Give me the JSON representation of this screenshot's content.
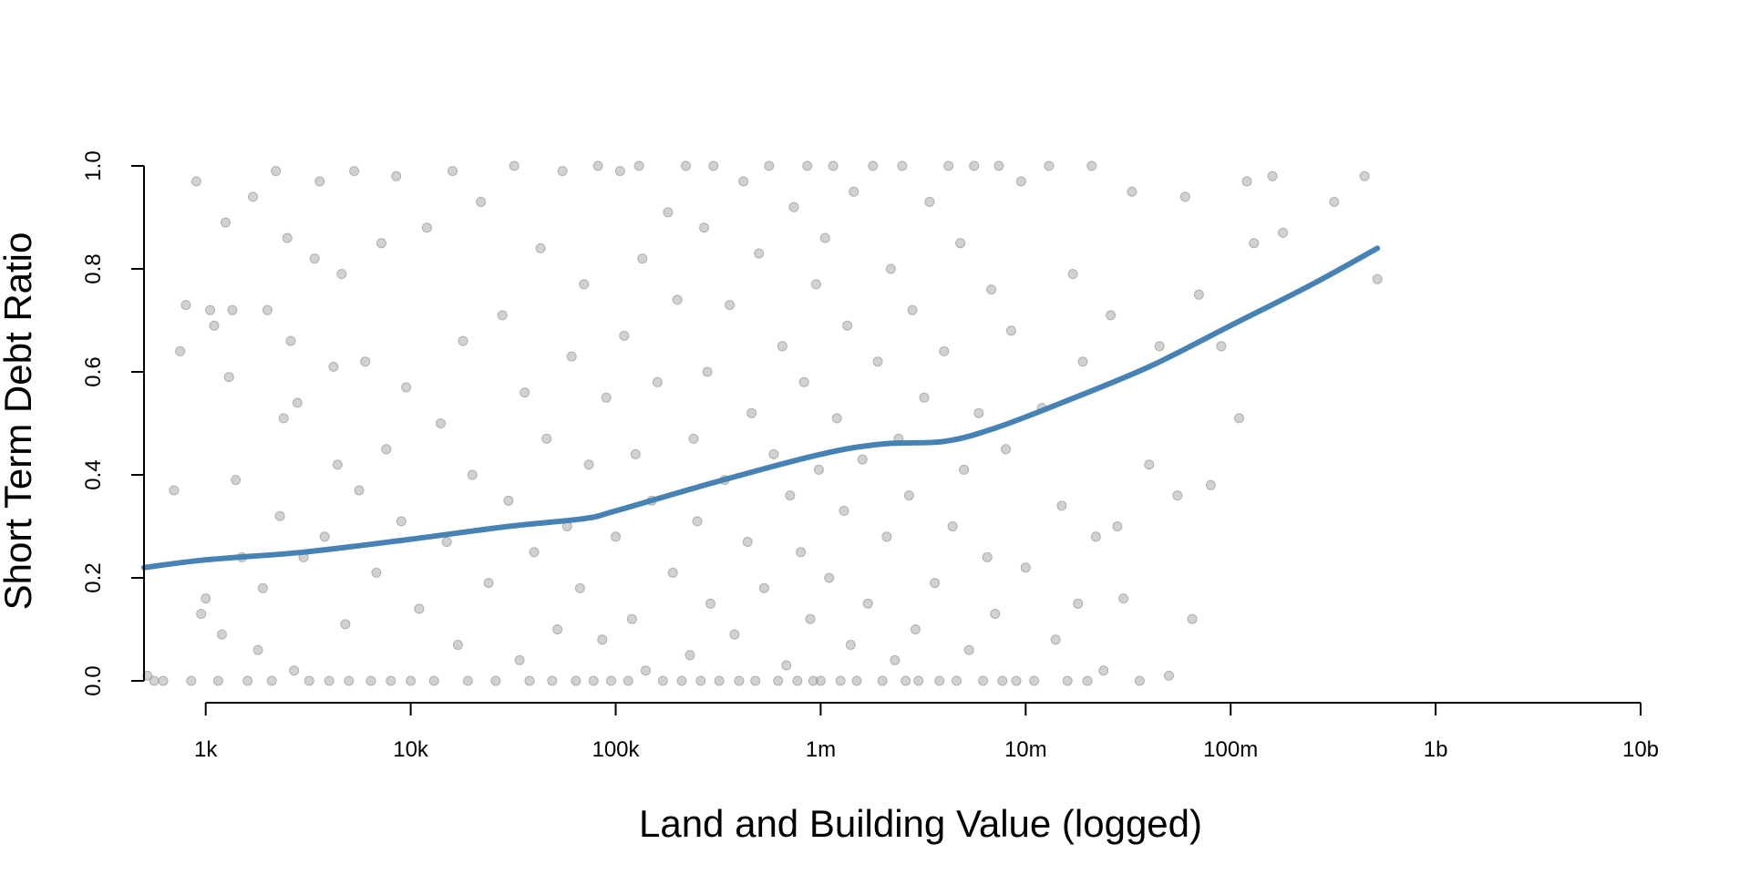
{
  "chart_data": {
    "type": "scatter",
    "title": "",
    "xlabel": "Land and Building Value (logged)",
    "ylabel": "Short Term Debt Ratio",
    "x_scale": "log",
    "xlim": [
      500,
      10000000000
    ],
    "ylim": [
      0,
      1
    ],
    "x_ticks": [
      {
        "value": 1000,
        "label": "1k"
      },
      {
        "value": 10000,
        "label": "10k"
      },
      {
        "value": 100000,
        "label": "100k"
      },
      {
        "value": 1000000,
        "label": "1m"
      },
      {
        "value": 10000000,
        "label": "10m"
      },
      {
        "value": 100000000,
        "label": "100m"
      },
      {
        "value": 1000000000,
        "label": "1b"
      },
      {
        "value": 10000000000,
        "label": "10b"
      }
    ],
    "y_ticks": [
      {
        "value": 0,
        "label": "0.0"
      },
      {
        "value": 0.2,
        "label": "0.2"
      },
      {
        "value": 0.4,
        "label": "0.4"
      },
      {
        "value": 0.6,
        "label": "0.6"
      },
      {
        "value": 0.8,
        "label": "0.8"
      },
      {
        "value": 1,
        "label": "1.0"
      }
    ],
    "grid": false,
    "point_color": "#999999",
    "trend_color": "#4682b4",
    "series": [
      {
        "type": "scatter",
        "points": [
          [
            520,
            0.01
          ],
          [
            560,
            0.0
          ],
          [
            620,
            0.0
          ],
          [
            700,
            0.37
          ],
          [
            750,
            0.64
          ],
          [
            800,
            0.73
          ],
          [
            850,
            0.0
          ],
          [
            900,
            0.97
          ],
          [
            950,
            0.13
          ],
          [
            1000,
            0.16
          ],
          [
            1050,
            0.72
          ],
          [
            1100,
            0.69
          ],
          [
            1150,
            0.0
          ],
          [
            1200,
            0.09
          ],
          [
            1250,
            0.89
          ],
          [
            1300,
            0.59
          ],
          [
            1350,
            0.72
          ],
          [
            1400,
            0.39
          ],
          [
            1500,
            0.24
          ],
          [
            1600,
            0.0
          ],
          [
            1700,
            0.94
          ],
          [
            1800,
            0.06
          ],
          [
            1900,
            0.18
          ],
          [
            2000,
            0.72
          ],
          [
            2100,
            0.0
          ],
          [
            2200,
            0.99
          ],
          [
            2300,
            0.32
          ],
          [
            2400,
            0.51
          ],
          [
            2500,
            0.86
          ],
          [
            2600,
            0.66
          ],
          [
            2700,
            0.02
          ],
          [
            2800,
            0.54
          ],
          [
            3000,
            0.24
          ],
          [
            3200,
            0.0
          ],
          [
            3400,
            0.82
          ],
          [
            3600,
            0.97
          ],
          [
            3800,
            0.28
          ],
          [
            4000,
            0.0
          ],
          [
            4200,
            0.61
          ],
          [
            4400,
            0.42
          ],
          [
            4600,
            0.79
          ],
          [
            4800,
            0.11
          ],
          [
            5000,
            0.0
          ],
          [
            5300,
            0.99
          ],
          [
            5600,
            0.37
          ],
          [
            6000,
            0.62
          ],
          [
            6400,
            0.0
          ],
          [
            6800,
            0.21
          ],
          [
            7200,
            0.85
          ],
          [
            7600,
            0.45
          ],
          [
            8000,
            0.0
          ],
          [
            8500,
            0.98
          ],
          [
            9000,
            0.31
          ],
          [
            9500,
            0.57
          ],
          [
            10000,
            0.0
          ],
          [
            11000,
            0.14
          ],
          [
            12000,
            0.88
          ],
          [
            13000,
            0.0
          ],
          [
            14000,
            0.5
          ],
          [
            15000,
            0.27
          ],
          [
            16000,
            0.99
          ],
          [
            17000,
            0.07
          ],
          [
            18000,
            0.66
          ],
          [
            19000,
            0.0
          ],
          [
            20000,
            0.4
          ],
          [
            22000,
            0.93
          ],
          [
            24000,
            0.19
          ],
          [
            26000,
            0.0
          ],
          [
            28000,
            0.71
          ],
          [
            30000,
            0.35
          ],
          [
            32000,
            1.0
          ],
          [
            34000,
            0.04
          ],
          [
            36000,
            0.56
          ],
          [
            38000,
            0.0
          ],
          [
            40000,
            0.25
          ],
          [
            43000,
            0.84
          ],
          [
            46000,
            0.47
          ],
          [
            49000,
            0.0
          ],
          [
            52000,
            0.1
          ],
          [
            55000,
            0.99
          ],
          [
            58000,
            0.3
          ],
          [
            61000,
            0.63
          ],
          [
            64000,
            0.0
          ],
          [
            67000,
            0.18
          ],
          [
            70000,
            0.77
          ],
          [
            74000,
            0.42
          ],
          [
            78000,
            0.0
          ],
          [
            82000,
            1.0
          ],
          [
            86000,
            0.08
          ],
          [
            90000,
            0.55
          ],
          [
            95000,
            0.0
          ],
          [
            100000,
            0.28
          ],
          [
            105000,
            0.99
          ],
          [
            110000,
            0.67
          ],
          [
            115000,
            0.0
          ],
          [
            120000,
            0.12
          ],
          [
            125000,
            0.44
          ],
          [
            130000,
            1.0
          ],
          [
            135000,
            0.82
          ],
          [
            140000,
            0.02
          ],
          [
            150000,
            0.35
          ],
          [
            160000,
            0.58
          ],
          [
            170000,
            0.0
          ],
          [
            180000,
            0.91
          ],
          [
            190000,
            0.21
          ],
          [
            200000,
            0.74
          ],
          [
            210000,
            0.0
          ],
          [
            220000,
            1.0
          ],
          [
            230000,
            0.05
          ],
          [
            240000,
            0.47
          ],
          [
            250000,
            0.31
          ],
          [
            260000,
            0.0
          ],
          [
            270000,
            0.88
          ],
          [
            280000,
            0.6
          ],
          [
            290000,
            0.15
          ],
          [
            300000,
            1.0
          ],
          [
            320000,
            0.0
          ],
          [
            340000,
            0.39
          ],
          [
            360000,
            0.73
          ],
          [
            380000,
            0.09
          ],
          [
            400000,
            0.0
          ],
          [
            420000,
            0.97
          ],
          [
            440000,
            0.27
          ],
          [
            460000,
            0.52
          ],
          [
            480000,
            0.0
          ],
          [
            500000,
            0.83
          ],
          [
            530000,
            0.18
          ],
          [
            560000,
            1.0
          ],
          [
            590000,
            0.44
          ],
          [
            620000,
            0.0
          ],
          [
            650000,
            0.65
          ],
          [
            680000,
            0.03
          ],
          [
            710000,
            0.36
          ],
          [
            740000,
            0.92
          ],
          [
            770000,
            0.0
          ],
          [
            800000,
            0.25
          ],
          [
            830000,
            0.58
          ],
          [
            860000,
            1.0
          ],
          [
            890000,
            0.12
          ],
          [
            920000,
            0.0
          ],
          [
            950000,
            0.77
          ],
          [
            980000,
            0.41
          ],
          [
            1000000,
            0.0
          ],
          [
            1050000,
            0.86
          ],
          [
            1100000,
            0.2
          ],
          [
            1150000,
            1.0
          ],
          [
            1200000,
            0.51
          ],
          [
            1250000,
            0.0
          ],
          [
            1300000,
            0.33
          ],
          [
            1350000,
            0.69
          ],
          [
            1400000,
            0.07
          ],
          [
            1450000,
            0.95
          ],
          [
            1500000,
            0.0
          ],
          [
            1600000,
            0.43
          ],
          [
            1700000,
            0.15
          ],
          [
            1800000,
            1.0
          ],
          [
            1900000,
            0.62
          ],
          [
            2000000,
            0.0
          ],
          [
            2100000,
            0.28
          ],
          [
            2200000,
            0.8
          ],
          [
            2300000,
            0.04
          ],
          [
            2400000,
            0.47
          ],
          [
            2500000,
            1.0
          ],
          [
            2600000,
            0.0
          ],
          [
            2700000,
            0.36
          ],
          [
            2800000,
            0.72
          ],
          [
            2900000,
            0.1
          ],
          [
            3000000,
            0.0
          ],
          [
            3200000,
            0.55
          ],
          [
            3400000,
            0.93
          ],
          [
            3600000,
            0.19
          ],
          [
            3800000,
            0.0
          ],
          [
            4000000,
            0.64
          ],
          [
            4200000,
            1.0
          ],
          [
            4400000,
            0.3
          ],
          [
            4600000,
            0.0
          ],
          [
            4800000,
            0.85
          ],
          [
            5000000,
            0.41
          ],
          [
            5300000,
            0.06
          ],
          [
            5600000,
            1.0
          ],
          [
            5900000,
            0.52
          ],
          [
            6200000,
            0.0
          ],
          [
            6500000,
            0.24
          ],
          [
            6800000,
            0.76
          ],
          [
            7100000,
            0.13
          ],
          [
            7400000,
            1.0
          ],
          [
            7700000,
            0.0
          ],
          [
            8000000,
            0.45
          ],
          [
            8500000,
            0.68
          ],
          [
            9000000,
            0.0
          ],
          [
            9500000,
            0.97
          ],
          [
            10000000,
            0.22
          ],
          [
            11000000,
            0.0
          ],
          [
            12000000,
            0.53
          ],
          [
            13000000,
            1.0
          ],
          [
            14000000,
            0.08
          ],
          [
            15000000,
            0.34
          ],
          [
            16000000,
            0.0
          ],
          [
            17000000,
            0.79
          ],
          [
            18000000,
            0.15
          ],
          [
            19000000,
            0.62
          ],
          [
            20000000,
            0.0
          ],
          [
            21000000,
            1.0
          ],
          [
            22000000,
            0.28
          ],
          [
            24000000,
            0.02
          ],
          [
            26000000,
            0.71
          ],
          [
            28000000,
            0.3
          ],
          [
            30000000,
            0.16
          ],
          [
            33000000,
            0.95
          ],
          [
            36000000,
            0.0
          ],
          [
            40000000,
            0.42
          ],
          [
            45000000,
            0.65
          ],
          [
            50000000,
            0.01
          ],
          [
            55000000,
            0.36
          ],
          [
            60000000,
            0.94
          ],
          [
            65000000,
            0.12
          ],
          [
            70000000,
            0.75
          ],
          [
            80000000,
            0.38
          ],
          [
            90000000,
            0.65
          ],
          [
            110000000,
            0.51
          ],
          [
            120000000,
            0.97
          ],
          [
            130000000,
            0.85
          ],
          [
            160000000,
            0.98
          ],
          [
            180000000,
            0.87
          ],
          [
            320000000,
            0.93
          ],
          [
            450000000,
            0.98
          ],
          [
            520000000,
            0.78
          ]
        ]
      },
      {
        "type": "line",
        "name": "",
        "points": [
          [
            500,
            0.22
          ],
          [
            1000,
            0.235
          ],
          [
            3000,
            0.25
          ],
          [
            10000,
            0.275
          ],
          [
            30000,
            0.3
          ],
          [
            70000,
            0.315
          ],
          [
            100000,
            0.33
          ],
          [
            300000,
            0.385
          ],
          [
            1000000,
            0.44
          ],
          [
            2000000,
            0.46
          ],
          [
            4000000,
            0.465
          ],
          [
            7000000,
            0.49
          ],
          [
            15000000,
            0.54
          ],
          [
            40000000,
            0.61
          ],
          [
            100000000,
            0.69
          ],
          [
            250000000,
            0.77
          ],
          [
            520000000,
            0.84
          ]
        ]
      }
    ]
  }
}
